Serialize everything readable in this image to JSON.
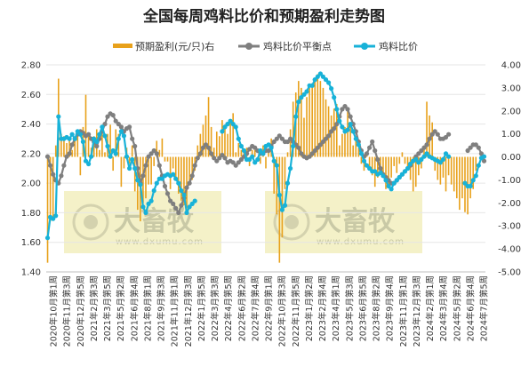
{
  "colors": {
    "profit": "#E8A11B",
    "breakeven": "#7F7F7F",
    "ratio": "#18B2D8",
    "watermark_bg": "#F4F1C8"
  },
  "watermark": {
    "brand": "大畜牧",
    "url": "www.dxumu.com"
  },
  "chart_data": {
    "type": "bar+line",
    "title": "全国每周鸡料比价和预期盈利走势图",
    "legend": [
      "预期盈利(元/只)右",
      "鸡料比价平衡点",
      "鸡料比价"
    ],
    "legend_position": "top",
    "y_left": {
      "range": [
        1.4,
        2.8
      ],
      "ticks": [
        "1.40",
        "1.60",
        "1.80",
        "2.00",
        "2.20",
        "2.40",
        "2.60",
        "2.80"
      ]
    },
    "y_right": {
      "range": [
        -5,
        4
      ],
      "ticks": [
        "4.00",
        "3.00",
        "2.00",
        "1.00",
        "0.00",
        "-1.00",
        "-2.00",
        "-3.00",
        "-4.00",
        "-5.00"
      ]
    },
    "x_tick_labels": [
      "2020年10月第1周",
      "2020年11月第3周",
      "2020年12月第5周",
      "2021年2月第3周",
      "2021年3月第5周",
      "2021年5月第2周",
      "2021年6月第4周",
      "2021年8月第1周",
      "2021年9月第3周",
      "2021年11月第1周",
      "2021年12月第3周",
      "2022年1月第5周",
      "2022年3月第3周",
      "2022年4月第5周",
      "2022年6月第2周",
      "2022年7月第4周",
      "2022年9月第1周",
      "2022年10月第3周",
      "2022年11月第5周",
      "2023年1月第2周",
      "2023年2月第4周",
      "2023年4月第1周",
      "2023年5月第3周",
      "2023年6月第5周",
      "2023年8月第2周",
      "2023年9月第4周",
      "2023年11月第1周",
      "2023年12月第3周",
      "2024年2月第1周",
      "2024年3月第4周",
      "2024年5月第2周",
      "2024年6月第4周",
      "2024年7月第5周"
    ],
    "series": [
      {
        "name": "鸡料比价平衡点",
        "values": [
          2.18,
          2.12,
          2.06,
          2.02,
          2.0,
          2.05,
          2.12,
          2.18,
          2.2,
          2.26,
          2.3,
          2.33,
          2.35,
          2.34,
          2.32,
          2.33,
          2.3,
          2.28,
          2.25,
          2.3,
          2.35,
          2.4,
          2.45,
          2.47,
          2.46,
          2.42,
          2.4,
          2.38,
          2.35,
          2.37,
          2.38,
          2.3,
          2.25,
          2.1,
          2.0,
          2.05,
          2.12,
          2.18,
          2.2,
          2.22,
          2.2,
          2.12,
          2.05,
          1.98,
          1.93,
          1.88,
          1.86,
          1.83,
          1.8,
          1.85,
          1.9,
          1.97,
          2.0,
          2.05,
          2.12,
          2.17,
          2.2,
          2.24,
          2.26,
          2.24,
          2.2,
          2.17,
          2.15,
          2.17,
          2.19,
          2.17,
          2.14,
          2.15,
          2.14,
          2.12,
          2.14,
          2.16,
          2.18,
          2.2,
          2.23,
          2.25,
          2.24,
          2.22,
          2.2,
          2.2,
          2.22,
          2.22,
          2.25,
          2.28,
          2.3,
          2.32,
          2.3,
          2.28,
          2.28,
          2.3,
          2.28,
          2.26,
          2.24,
          2.2,
          2.18,
          2.17,
          2.18,
          2.2,
          2.22,
          2.24,
          2.26,
          2.28,
          2.3,
          2.32,
          2.35,
          2.37,
          2.4,
          2.45,
          2.5,
          2.52,
          2.5,
          2.45,
          2.4,
          2.35,
          2.28,
          2.22,
          2.18,
          2.2,
          2.24,
          2.28,
          2.22,
          2.16,
          2.1,
          2.06,
          2.04,
          2.02,
          2.0,
          2.0,
          2.02,
          2.04,
          2.06,
          2.08,
          2.1,
          2.12,
          2.15,
          2.18,
          2.2,
          2.22,
          2.24,
          2.26,
          2.3,
          2.33,
          2.35,
          2.33,
          2.3,
          2.3,
          2.31,
          2.33,
          null,
          null,
          null,
          null,
          null,
          null,
          2.22,
          2.24,
          2.26,
          2.26,
          2.24,
          2.2,
          2.15
        ]
      },
      {
        "name": "鸡料比价",
        "values": [
          1.63,
          1.77,
          1.76,
          1.78,
          2.45,
          2.3,
          2.3,
          2.31,
          2.3,
          2.33,
          2.3,
          2.35,
          2.33,
          2.28,
          2.15,
          2.13,
          2.18,
          2.3,
          2.28,
          2.33,
          2.38,
          2.32,
          2.25,
          2.18,
          2.22,
          2.2,
          2.3,
          2.35,
          2.32,
          2.18,
          2.1,
          2.16,
          2.1,
          2.02,
          1.99,
          1.84,
          1.8,
          1.86,
          1.88,
          1.95,
          2.0,
          2.03,
          2.03,
          2.05,
          2.06,
          2.05,
          2.06,
          2.03,
          2.0,
          1.95,
          1.92,
          1.8,
          1.84,
          1.86,
          1.88,
          null,
          null,
          null,
          null,
          null,
          null,
          null,
          null,
          null,
          2.35,
          2.38,
          2.4,
          2.42,
          2.4,
          2.38,
          2.3,
          2.25,
          2.22,
          2.16,
          2.16,
          2.18,
          2.14,
          2.16,
          2.22,
          2.2,
          2.25,
          2.26,
          2.24,
          2.15,
          2.12,
          1.92,
          1.82,
          1.85,
          2.0,
          2.1,
          2.25,
          2.45,
          2.55,
          2.58,
          2.6,
          2.62,
          2.66,
          2.66,
          2.7,
          2.72,
          2.74,
          2.72,
          2.7,
          2.68,
          2.64,
          2.58,
          2.5,
          2.42,
          2.38,
          2.35,
          2.36,
          2.4,
          2.35,
          2.3,
          2.26,
          2.2,
          2.15,
          2.12,
          2.1,
          2.08,
          2.08,
          2.06,
          2.07,
          2.05,
          2.02,
          1.98,
          1.96,
          2.0,
          2.02,
          2.04,
          2.06,
          2.08,
          2.1,
          2.13,
          2.15,
          2.16,
          2.14,
          2.16,
          2.18,
          2.2,
          2.18,
          2.17,
          2.16,
          2.15,
          2.14,
          2.16,
          2.2,
          2.18,
          null,
          null,
          null,
          null,
          null,
          2.0,
          1.98,
          1.98,
          2.02,
          2.05,
          2.12,
          2.17,
          2.18
        ]
      },
      {
        "name": "预期盈利(元/只)右",
        "axis": "right",
        "values": [
          -4.6,
          -2.8,
          -2.6,
          0.5,
          3.4,
          1.0,
          0.9,
          0.6,
          0.8,
          0.3,
          0.7,
          1.0,
          -0.8,
          1.3,
          2.7,
          1.0,
          0.4,
          0.9,
          1.2,
          0.3,
          1.1,
          0.2,
          1.0,
          1.4,
          -0.6,
          1.2,
          1.0,
          -1.3,
          -0.5,
          0.4,
          -0.3,
          0.5,
          -1.5,
          -2.3,
          -2.8,
          -2.0,
          -1.8,
          -1.2,
          -1.2,
          -0.4,
          0.7,
          0.3,
          0.8,
          -0.2,
          -0.2,
          -1.4,
          -0.5,
          -1.0,
          -1.6,
          -1.9,
          -2.1,
          -2.4,
          -1.2,
          -1.0,
          -0.6,
          0.5,
          1.0,
          1.4,
          1.8,
          2.6,
          1.3,
          0.4,
          1.1,
          0.9,
          1.6,
          1.4,
          1.0,
          1.5,
          1.9,
          0.2,
          0.6,
          0.3,
          0.2,
          0.4,
          -0.4,
          0.3,
          0.3,
          -0.2,
          -0.3,
          0.5,
          -0.5,
          0.2,
          0.8,
          -1.6,
          -2.5,
          -4.6,
          -3.5,
          -1.4,
          0.2,
          1.2,
          2.4,
          2.8,
          3.3,
          3.0,
          1.7,
          2.6,
          3.0,
          3.2,
          3.4,
          3.6,
          3.3,
          3.0,
          2.5,
          2.2,
          1.8,
          2.1,
          2.3,
          0.5,
          1.0,
          1.3,
          2.1,
          1.4,
          0.5,
          0.9,
          0.4,
          -0.3,
          -0.6,
          0.2,
          -0.5,
          -0.8,
          -1.3,
          -0.9,
          -0.6,
          -0.8,
          -1.4,
          -1.2,
          -0.9,
          -0.4,
          -0.7,
          -0.3,
          0.2,
          -0.3,
          -0.5,
          -1.0,
          -1.5,
          -1.3,
          -0.8,
          -0.5,
          0.5,
          2.4,
          1.8,
          1.5,
          -0.6,
          -1.0,
          -1.2,
          -0.9,
          -1.5,
          -0.8,
          -1.2,
          -1.5,
          -1.8,
          -2.3,
          -1.8,
          -2.4,
          -2.5,
          -1.8,
          -1.4,
          -0.6
        ]
      }
    ]
  }
}
